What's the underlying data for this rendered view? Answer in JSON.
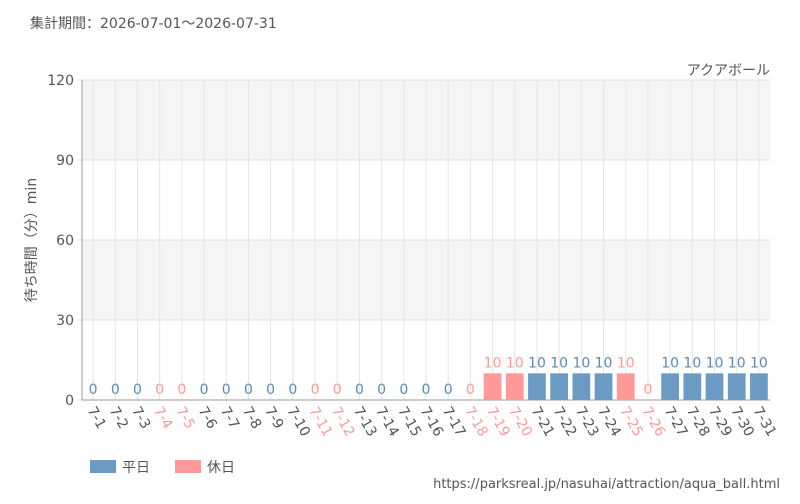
{
  "chart_data": {
    "type": "bar",
    "title": "集計期間：2026-07-01～2026-07-31",
    "subtitle": "アクアボール",
    "y_label": "待ち時間（分）min",
    "source": "https://parksreal.jp/nasuhai/attraction/aqua_ball.html",
    "categories": [
      "7-1",
      "7-2",
      "7-3",
      "7-4",
      "7-5",
      "7-6",
      "7-7",
      "7-8",
      "7-9",
      "7-10",
      "7-11",
      "7-12",
      "7-13",
      "7-14",
      "7-15",
      "7-16",
      "7-17",
      "7-18",
      "7-19",
      "7-20",
      "7-21",
      "7-22",
      "7-23",
      "7-24",
      "7-25",
      "7-26",
      "7-27",
      "7-28",
      "7-29",
      "7-30",
      "7-31"
    ],
    "series": [
      {
        "name": "平日",
        "color": "#6b9bc3",
        "values": [
          0,
          0,
          0,
          null,
          null,
          0,
          0,
          0,
          0,
          0,
          null,
          null,
          0,
          0,
          0,
          0,
          0,
          null,
          null,
          null,
          10,
          10,
          10,
          10,
          null,
          null,
          10,
          10,
          10,
          10,
          10
        ]
      },
      {
        "name": "休日",
        "color": "#ff9999",
        "values": [
          null,
          null,
          null,
          0,
          0,
          null,
          null,
          null,
          null,
          null,
          0,
          0,
          null,
          null,
          null,
          null,
          null,
          0,
          10,
          10,
          null,
          null,
          null,
          null,
          10,
          0,
          null,
          null,
          null,
          null,
          null
        ]
      }
    ],
    "ylim": [
      0,
      120
    ],
    "yticks": [
      0,
      30,
      60,
      90,
      120
    ],
    "grid": true
  }
}
